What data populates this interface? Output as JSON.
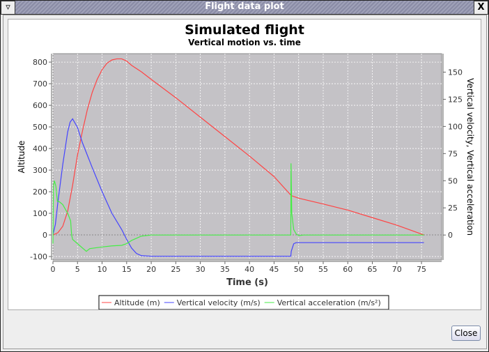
{
  "window": {
    "title": "Flight data plot",
    "close_label": "Close",
    "menu_icon": "triangle-down-icon",
    "close_icon": "x-icon"
  },
  "chart_data": {
    "type": "line",
    "title": "Simulated flight",
    "subtitle": "Vertical motion vs. time",
    "xlabel": "Time (s)",
    "ylabel": "Altitude",
    "y2label": "Vertical velocity, Vertical acceleration",
    "xlim": [
      0,
      79.1
    ],
    "ylim": [
      -116,
      839
    ],
    "y2lim": [
      -23,
      167
    ],
    "xticks": [
      0,
      5,
      10,
      15,
      20,
      25,
      30,
      35,
      40,
      45,
      50,
      55,
      60,
      65,
      70,
      75
    ],
    "yticks": [
      -100,
      0,
      100,
      200,
      300,
      400,
      500,
      600,
      700,
      800
    ],
    "y2ticks": [
      0,
      25,
      50,
      75,
      100,
      125,
      150
    ],
    "grid": true,
    "legend_position": "bottom",
    "series": [
      {
        "name": "Altitude (m)",
        "axis": "left",
        "color": "#ff4444",
        "x": [
          0,
          1,
          2,
          3,
          4,
          5,
          6,
          7,
          8,
          9,
          10,
          11,
          12,
          13,
          14,
          15,
          16,
          18,
          20,
          25,
          30,
          35,
          40,
          45,
          48.5,
          50,
          55,
          60,
          65,
          70,
          75.5
        ],
        "y": [
          0,
          10,
          40,
          110,
          230,
          370,
          480,
          580,
          660,
          720,
          765,
          795,
          810,
          815,
          815,
          805,
          785,
          755,
          720,
          635,
          545,
          455,
          365,
          270,
          182,
          170,
          143,
          115,
          80,
          45,
          0
        ]
      },
      {
        "name": "Vertical velocity (m/s)",
        "axis": "right",
        "color": "#4444ff",
        "x": [
          0,
          0.5,
          1,
          2,
          3,
          3.5,
          4,
          5,
          6,
          8,
          10,
          12,
          14,
          15,
          16,
          17,
          18,
          20,
          48.4,
          48.5,
          49,
          49.5,
          75.5
        ],
        "y": [
          0,
          10,
          30,
          65,
          95,
          104,
          107,
          99,
          85,
          62,
          40,
          20,
          5,
          -4,
          -12,
          -17,
          -19,
          -19.5,
          -19.5,
          -15,
          -8,
          -7,
          -7
        ]
      },
      {
        "name": "Vertical acceleration (m/s²)",
        "axis": "right",
        "color": "#44ee44",
        "x": [
          0,
          0.1,
          0.3,
          0.6,
          0.9,
          1.2,
          2,
          3,
          3.6,
          3.8,
          4,
          5,
          6.8,
          7.5,
          10,
          12,
          14,
          15,
          16,
          18,
          20,
          48.4,
          48.45,
          48.6,
          49,
          49.5,
          50,
          51,
          75.5
        ],
        "y": [
          -8,
          45,
          50,
          45,
          31,
          31,
          28,
          20,
          13,
          0,
          -4,
          -8,
          -15,
          -12.5,
          -11,
          -10,
          -9.5,
          -8,
          -5,
          -1,
          0,
          0,
          66,
          20,
          5,
          1,
          -0.5,
          0,
          0
        ]
      }
    ]
  }
}
